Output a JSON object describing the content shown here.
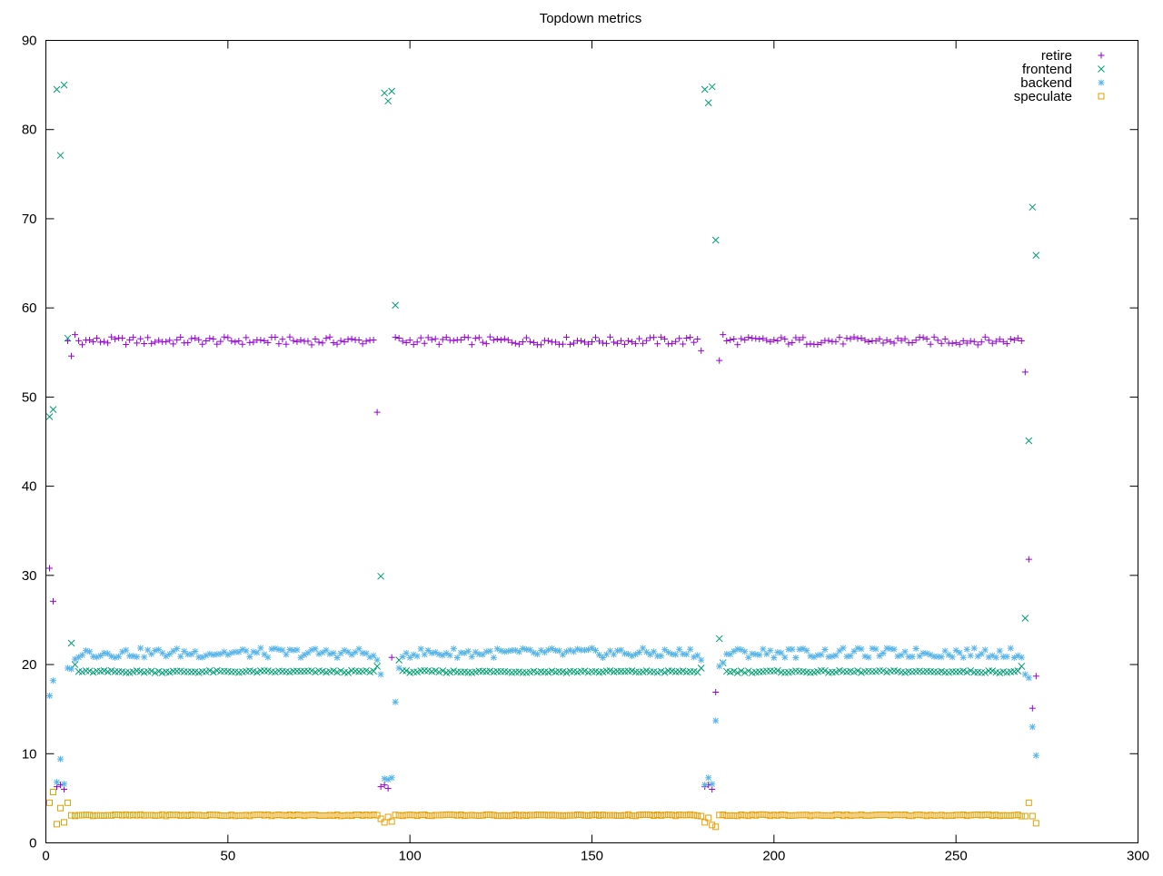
{
  "chart_data": {
    "type": "scatter",
    "title": "Topdown metrics",
    "xlabel": "",
    "ylabel": "",
    "xlim": [
      0,
      300
    ],
    "ylim": [
      0,
      90
    ],
    "x_ticks": [
      "0",
      "50",
      "100",
      "150",
      "200",
      "250",
      "300"
    ],
    "y_ticks": [
      "0",
      "10",
      "20",
      "30",
      "40",
      "50",
      "60",
      "70",
      "80",
      "90"
    ],
    "grid": false,
    "legend_position": "top-right",
    "sample_points": 271,
    "series": [
      {
        "name": "retire",
        "marker": "+",
        "color": "#9400d3",
        "baseline": 56.3,
        "segments": [
          [
            7,
            90
          ],
          [
            95,
            179
          ],
          [
            184,
            267
          ]
        ],
        "points": [
          [
            1,
            30.8
          ],
          [
            2,
            27.1
          ],
          [
            3,
            6.3
          ],
          [
            4,
            6.5
          ],
          [
            5,
            6.0
          ],
          [
            6,
            56.3
          ],
          [
            7,
            54.6
          ],
          [
            8,
            57.0
          ],
          [
            90,
            56.4
          ],
          [
            91,
            48.3
          ],
          [
            92,
            6.3
          ],
          [
            93,
            6.5
          ],
          [
            94,
            6.1
          ],
          [
            95,
            20.8
          ],
          [
            96,
            56.7
          ],
          [
            179,
            56.5
          ],
          [
            180,
            55.2
          ],
          [
            181,
            6.3
          ],
          [
            182,
            6.5
          ],
          [
            183,
            6.0
          ],
          [
            184,
            16.9
          ],
          [
            185,
            54.1
          ],
          [
            186,
            57.0
          ],
          [
            267,
            56.6
          ],
          [
            268,
            56.3
          ],
          [
            269,
            52.8
          ],
          [
            270,
            31.8
          ],
          [
            271,
            15.1
          ],
          [
            272,
            18.7
          ]
        ]
      },
      {
        "name": "frontend",
        "marker": "x",
        "color": "#009e73",
        "baseline": 19.2,
        "segments": [
          [
            8,
            90
          ],
          [
            96,
            179
          ],
          [
            186,
            267
          ]
        ],
        "points": [
          [
            1,
            47.8
          ],
          [
            2,
            48.6
          ],
          [
            3,
            84.5
          ],
          [
            4,
            77.1
          ],
          [
            5,
            85.0
          ],
          [
            6,
            56.6
          ],
          [
            7,
            22.4
          ],
          [
            8,
            20.0
          ],
          [
            91,
            19.8
          ],
          [
            92,
            29.9
          ],
          [
            93,
            84.1
          ],
          [
            94,
            83.2
          ],
          [
            95,
            84.3
          ],
          [
            96,
            60.3
          ],
          [
            97,
            20.5
          ],
          [
            180,
            19.6
          ],
          [
            181,
            84.5
          ],
          [
            182,
            83.0
          ],
          [
            183,
            84.8
          ],
          [
            184,
            67.6
          ],
          [
            185,
            22.9
          ],
          [
            186,
            20.2
          ],
          [
            268,
            19.8
          ],
          [
            269,
            25.2
          ],
          [
            270,
            45.1
          ],
          [
            271,
            71.3
          ],
          [
            272,
            65.9
          ]
        ]
      },
      {
        "name": "backend",
        "marker": "*",
        "color": "#56b4e9",
        "baseline": 21.3,
        "segments": [
          [
            8,
            90
          ],
          [
            96,
            179
          ],
          [
            186,
            267
          ]
        ],
        "points": [
          [
            1,
            16.5
          ],
          [
            2,
            18.2
          ],
          [
            3,
            6.8
          ],
          [
            4,
            9.4
          ],
          [
            5,
            6.6
          ],
          [
            6,
            19.6
          ],
          [
            7,
            19.5
          ],
          [
            8,
            20.6
          ],
          [
            90,
            21.0
          ],
          [
            91,
            20.5
          ],
          [
            92,
            18.9
          ],
          [
            93,
            7.2
          ],
          [
            94,
            7.1
          ],
          [
            95,
            7.3
          ],
          [
            96,
            15.8
          ],
          [
            97,
            19.6
          ],
          [
            180,
            20.5
          ],
          [
            181,
            6.5
          ],
          [
            182,
            7.3
          ],
          [
            183,
            6.6
          ],
          [
            184,
            13.7
          ],
          [
            185,
            19.8
          ],
          [
            186,
            20.2
          ],
          [
            268,
            20.8
          ],
          [
            269,
            18.9
          ],
          [
            270,
            18.5
          ],
          [
            271,
            13.0
          ],
          [
            272,
            9.8
          ]
        ]
      },
      {
        "name": "speculate",
        "marker": "square",
        "color": "#e69f00",
        "baseline": 3.1,
        "segments": [
          [
            7,
            90
          ],
          [
            95,
            179
          ],
          [
            184,
            267
          ]
        ],
        "points": [
          [
            1,
            4.5
          ],
          [
            2,
            5.7
          ],
          [
            3,
            2.1
          ],
          [
            4,
            3.9
          ],
          [
            5,
            2.3
          ],
          [
            6,
            4.5
          ],
          [
            91,
            3.1
          ],
          [
            92,
            2.7
          ],
          [
            93,
            2.3
          ],
          [
            94,
            2.9
          ],
          [
            95,
            2.4
          ],
          [
            180,
            3.0
          ],
          [
            181,
            2.3
          ],
          [
            182,
            2.8
          ],
          [
            183,
            2.0
          ],
          [
            184,
            1.8
          ],
          [
            268,
            3.0
          ],
          [
            269,
            3.0
          ],
          [
            270,
            4.5
          ],
          [
            271,
            3.0
          ],
          [
            272,
            2.2
          ]
        ]
      }
    ]
  }
}
